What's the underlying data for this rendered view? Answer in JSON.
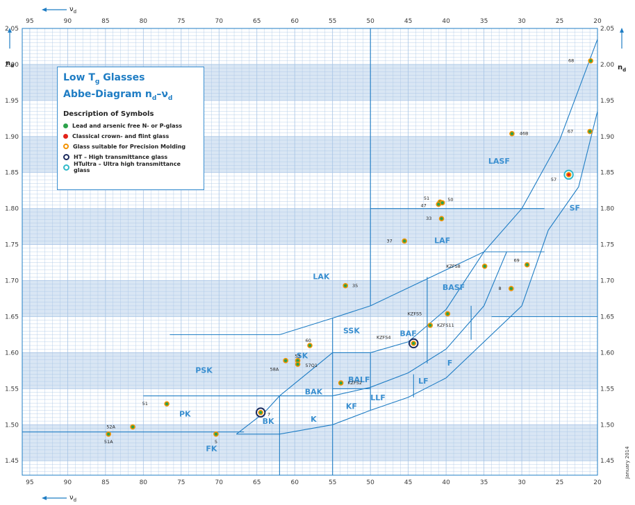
{
  "colors": {
    "band": "#d9e6f4",
    "grid": "#a7c4e5",
    "line": "#1f7dc4",
    "region_text": "#3a8fd0",
    "green": "#2ca24a",
    "red": "#e32219",
    "orange": "#f39200",
    "navy": "#1b2a5c",
    "cyan": "#2fb9c9"
  },
  "legend": {
    "title_main": "Low T",
    "title_sub": "g",
    "title_rest": " Glasses",
    "title2": "Abbe-Diagram n",
    "title2_sub1": "d",
    "title2_mid": "–ν",
    "title2_sub2": "d",
    "desc": "Description of Symbols",
    "items": [
      {
        "icon": "green-dot-icon",
        "text": "Lead and arsenic free N- or P-glass"
      },
      {
        "icon": "red-dot-icon",
        "text": "Classical crown- and flint glass"
      },
      {
        "icon": "orange-ring-icon",
        "text": "Glass suitable for Precision Molding"
      },
      {
        "icon": "navy-ring-icon",
        "text": "HT – High transmittance glass"
      },
      {
        "icon": "cyan-ring-icon",
        "text": "HTultra – Ultra high transmittance glass"
      }
    ]
  },
  "date_note": "January 2014",
  "axis_labels": {
    "nu_main": "ν",
    "nu_sub": "d",
    "n_main": "n",
    "n_sub": "d"
  },
  "chart_data": {
    "type": "scatter",
    "xlabel": "νd",
    "ylabel": "nd",
    "xlim": [
      96,
      20
    ],
    "ylim": [
      1.43,
      2.05
    ],
    "x_ticks": [
      95,
      90,
      85,
      80,
      75,
      70,
      65,
      60,
      55,
      50,
      45,
      40,
      35,
      30,
      25,
      20
    ],
    "y_ticks": [
      "1.45",
      "1.50",
      "1.55",
      "1.60",
      "1.65",
      "1.70",
      "1.75",
      "1.80",
      "1.85",
      "1.90",
      "1.95",
      "2.00",
      "2.05"
    ],
    "grid": true,
    "regions": [
      {
        "name": "LASF",
        "x": 33,
        "y": 1.865
      },
      {
        "name": "SF",
        "x": 23,
        "y": 1.8
      },
      {
        "name": "LAF",
        "x": 40.5,
        "y": 1.755
      },
      {
        "name": "LAK",
        "x": 56.5,
        "y": 1.705
      },
      {
        "name": "BASF",
        "x": 39,
        "y": 1.69
      },
      {
        "name": "SSK",
        "x": 52.5,
        "y": 1.63
      },
      {
        "name": "BAF",
        "x": 45,
        "y": 1.626
      },
      {
        "name": "SK",
        "x": 59,
        "y": 1.595
      },
      {
        "name": "F",
        "x": 39.5,
        "y": 1.585
      },
      {
        "name": "PSK",
        "x": 72,
        "y": 1.575
      },
      {
        "name": "BALF",
        "x": 51.5,
        "y": 1.562
      },
      {
        "name": "LF",
        "x": 43,
        "y": 1.56
      },
      {
        "name": "BAK",
        "x": 57.5,
        "y": 1.545
      },
      {
        "name": "LLF",
        "x": 49,
        "y": 1.537
      },
      {
        "name": "KF",
        "x": 52.5,
        "y": 1.525
      },
      {
        "name": "PK",
        "x": 74.5,
        "y": 1.514
      },
      {
        "name": "BK",
        "x": 63.5,
        "y": 1.504
      },
      {
        "name": "K",
        "x": 57.5,
        "y": 1.507
      },
      {
        "name": "FK",
        "x": 71,
        "y": 1.466
      }
    ],
    "glasses": [
      {
        "label": "68",
        "x": 20.9,
        "y": 2.005,
        "lx": -2.2,
        "ly": 0
      },
      {
        "label": "46B",
        "x": 31.3,
        "y": 1.904,
        "lx": 1.0,
        "ly": 0
      },
      {
        "label": "67",
        "x": 21.0,
        "y": 1.907,
        "lx": -2.2,
        "ly": 0
      },
      {
        "label": "57",
        "x": 23.8,
        "y": 1.847,
        "lx": -1.6,
        "ly": -0.007,
        "ring": "cyan"
      },
      {
        "label": "51",
        "x": 40.8,
        "y": 1.809,
        "lx": -1.4,
        "ly": 0.005
      },
      {
        "label": "50",
        "x": 40.5,
        "y": 1.808,
        "lx": 0.7,
        "ly": 0.004
      },
      {
        "label": "47",
        "x": 41.0,
        "y": 1.806,
        "lx": -1.6,
        "ly": -0.002
      },
      {
        "label": "33",
        "x": 40.6,
        "y": 1.786,
        "lx": -1.6,
        "ly": 0,
        "dx": 3.3
      },
      {
        "label": "37",
        "x": 45.5,
        "y": 1.755,
        "lx": -1.6,
        "ly": 0
      },
      {
        "label": "KZFS8",
        "x": 34.9,
        "y": 1.72,
        "lx": -3.2,
        "ly": 0
      },
      {
        "label": "69",
        "x": 29.3,
        "y": 1.722,
        "lx": -1.0,
        "ly": 0.006
      },
      {
        "label": "35",
        "x": 53.3,
        "y": 1.693,
        "lx": 0.9,
        "ly": 0
      },
      {
        "label": "8",
        "x": 31.4,
        "y": 1.689,
        "lx": -1.3,
        "ly": 0
      },
      {
        "label": "KZFS5",
        "x": 39.8,
        "y": 1.654,
        "lx": -3.4,
        "ly": 0
      },
      {
        "label": "KZFS11",
        "x": 42.1,
        "y": 1.638,
        "lx": 0.9,
        "ly": 0
      },
      {
        "label": "KZFS4",
        "x": 44.3,
        "y": 1.613,
        "lx": -3.0,
        "ly": 0.008,
        "ring": "navy"
      },
      {
        "label": "60",
        "x": 58.0,
        "y": 1.61,
        "lx": -0.2,
        "ly": 0.007
      },
      {
        "label": "58A",
        "x": 61.2,
        "y": 1.589,
        "lx": -0.9,
        "ly": -0.012
      },
      {
        "label": "57",
        "x": 59.6,
        "y": 1.589,
        "lx": 0.0,
        "ly": 0.006
      },
      {
        "label": "57Q1",
        "x": 59.6,
        "y": 1.584,
        "lx": 1.0,
        "ly": -0.002
      },
      {
        "label": "KZFS2",
        "x": 53.9,
        "y": 1.558,
        "lx": 0.9,
        "ly": 0
      },
      {
        "label": "51",
        "x": 76.9,
        "y": 1.529,
        "lx": -2.5,
        "ly": 0
      },
      {
        "label": "7",
        "x": 64.5,
        "y": 1.517,
        "lx": 0.9,
        "ly": -0.003,
        "ring": "navy"
      },
      {
        "label": "52A",
        "x": 81.4,
        "y": 1.497,
        "lx": -2.3,
        "ly": 0
      },
      {
        "label": "51A",
        "x": 84.6,
        "y": 1.487,
        "lx": 0,
        "ly": -0.011
      },
      {
        "label": "5",
        "x": 70.4,
        "y": 1.487,
        "lx": 0,
        "ly": -0.011
      }
    ]
  }
}
